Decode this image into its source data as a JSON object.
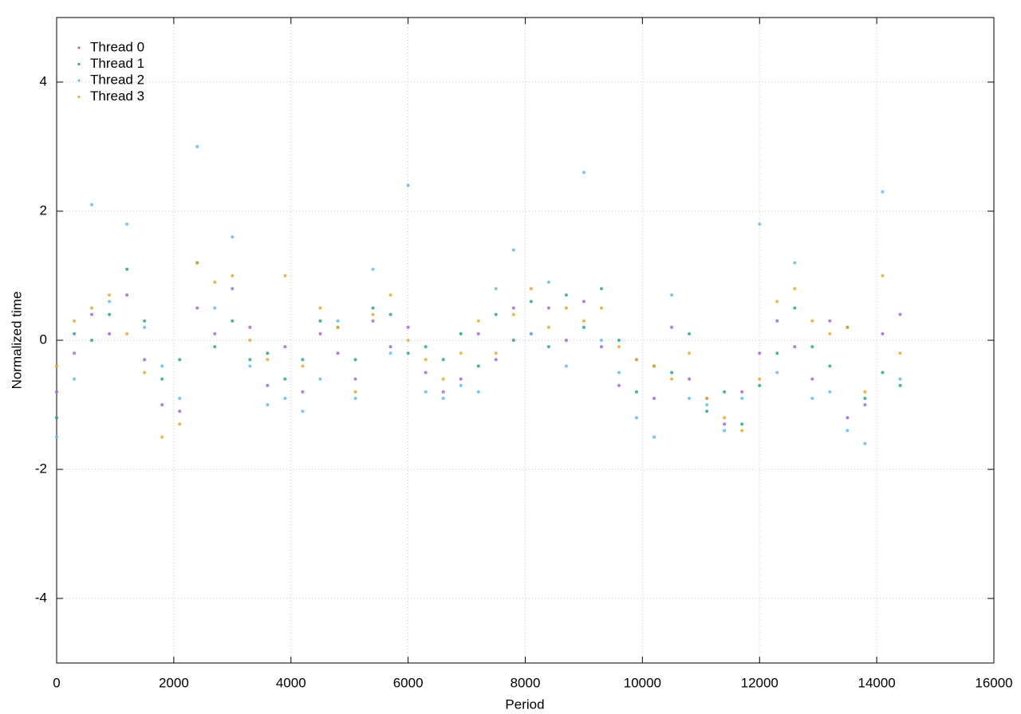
{
  "chart_data": {
    "type": "scatter",
    "xlabel": "Period",
    "ylabel": "Normalized time",
    "xlim": [
      0,
      16000
    ],
    "ylim": [
      -5,
      5
    ],
    "xticks": [
      0,
      2000,
      4000,
      6000,
      8000,
      10000,
      12000,
      14000,
      16000
    ],
    "yticks": [
      -4,
      -2,
      0,
      2,
      4
    ],
    "grid": true,
    "legend": "upper left",
    "x": [
      0,
      300,
      600,
      900,
      1200,
      1500,
      1800,
      2100,
      2400,
      2700,
      3000,
      3300,
      3600,
      3900,
      4200,
      4500,
      4800,
      5100,
      5400,
      5700,
      6000,
      6300,
      6600,
      6900,
      7200,
      7500,
      7800,
      8100,
      8400,
      8700,
      9000,
      9300,
      9600,
      9900,
      10200,
      10500,
      10800,
      11100,
      11400,
      11700,
      12000,
      12300,
      12600,
      12900,
      13200,
      13500,
      13800,
      14100,
      14400
    ],
    "series": [
      {
        "name": "Thread 0",
        "color": "#9b5fd6",
        "values": [
          -0.8,
          -0.2,
          0.4,
          0.1,
          0.7,
          -0.3,
          -1.0,
          -1.1,
          0.5,
          0.1,
          0.8,
          0.2,
          -0.7,
          -0.1,
          -0.8,
          0.1,
          -0.2,
          -0.6,
          0.3,
          -0.1,
          0.2,
          -0.5,
          -0.8,
          -0.6,
          0.1,
          -0.3,
          0.5,
          0.1,
          0.5,
          0.0,
          0.6,
          -0.1,
          -0.7,
          -0.3,
          -0.9,
          0.2,
          -0.6,
          -0.9,
          -1.3,
          -0.8,
          -0.2,
          0.3,
          -0.1,
          -0.6,
          0.3,
          -1.2,
          -1.0,
          0.1,
          0.4
        ]
      },
      {
        "name": "Thread 1",
        "color": "#22a07a",
        "values": [
          -1.2,
          0.1,
          0.0,
          0.4,
          1.1,
          0.3,
          -0.6,
          -0.3,
          1.2,
          -0.1,
          0.3,
          -0.3,
          -0.2,
          -0.6,
          -0.3,
          0.3,
          0.2,
          -0.3,
          0.5,
          0.4,
          -0.2,
          -0.1,
          -0.3,
          0.1,
          -0.4,
          0.4,
          0.0,
          0.6,
          -0.1,
          0.7,
          0.2,
          0.8,
          0.0,
          -0.8,
          -0.4,
          -0.5,
          0.1,
          -1.1,
          -0.8,
          -1.3,
          -0.7,
          -0.2,
          0.5,
          -0.1,
          -0.4,
          0.2,
          -0.9,
          -0.5,
          -0.7
        ]
      },
      {
        "name": "Thread 2",
        "color": "#5bb8e8",
        "values": [
          -1.5,
          -0.6,
          2.1,
          0.6,
          1.8,
          0.2,
          -0.4,
          -0.9,
          3.0,
          0.5,
          1.6,
          -0.4,
          -1.0,
          -0.9,
          -1.1,
          -0.6,
          0.3,
          -0.9,
          1.1,
          -0.2,
          2.4,
          -0.8,
          -0.9,
          -0.7,
          -0.8,
          0.8,
          1.4,
          0.1,
          0.9,
          -0.4,
          2.6,
          0.0,
          -0.5,
          -1.2,
          -1.5,
          0.7,
          -0.9,
          -1.0,
          -1.4,
          -0.9,
          1.8,
          -0.5,
          1.2,
          -0.9,
          -0.8,
          -1.4,
          -1.6,
          2.3,
          -0.6
        ]
      },
      {
        "name": "Thread 3",
        "color": "#e6a52a",
        "values": [
          -0.4,
          0.3,
          0.5,
          0.7,
          0.1,
          -0.5,
          -1.5,
          -1.3,
          1.2,
          0.9,
          1.0,
          0.0,
          -0.3,
          1.0,
          -0.4,
          0.5,
          0.2,
          -0.8,
          0.4,
          0.7,
          0.0,
          -0.3,
          -0.6,
          -0.2,
          0.3,
          -0.2,
          0.4,
          0.8,
          0.2,
          0.5,
          0.3,
          0.5,
          -0.1,
          -0.3,
          -0.4,
          -0.6,
          -0.2,
          -0.9,
          -1.2,
          -1.4,
          -0.6,
          0.6,
          0.8,
          0.3,
          0.1,
          0.2,
          -0.8,
          1.0,
          -0.2
        ]
      }
    ]
  }
}
